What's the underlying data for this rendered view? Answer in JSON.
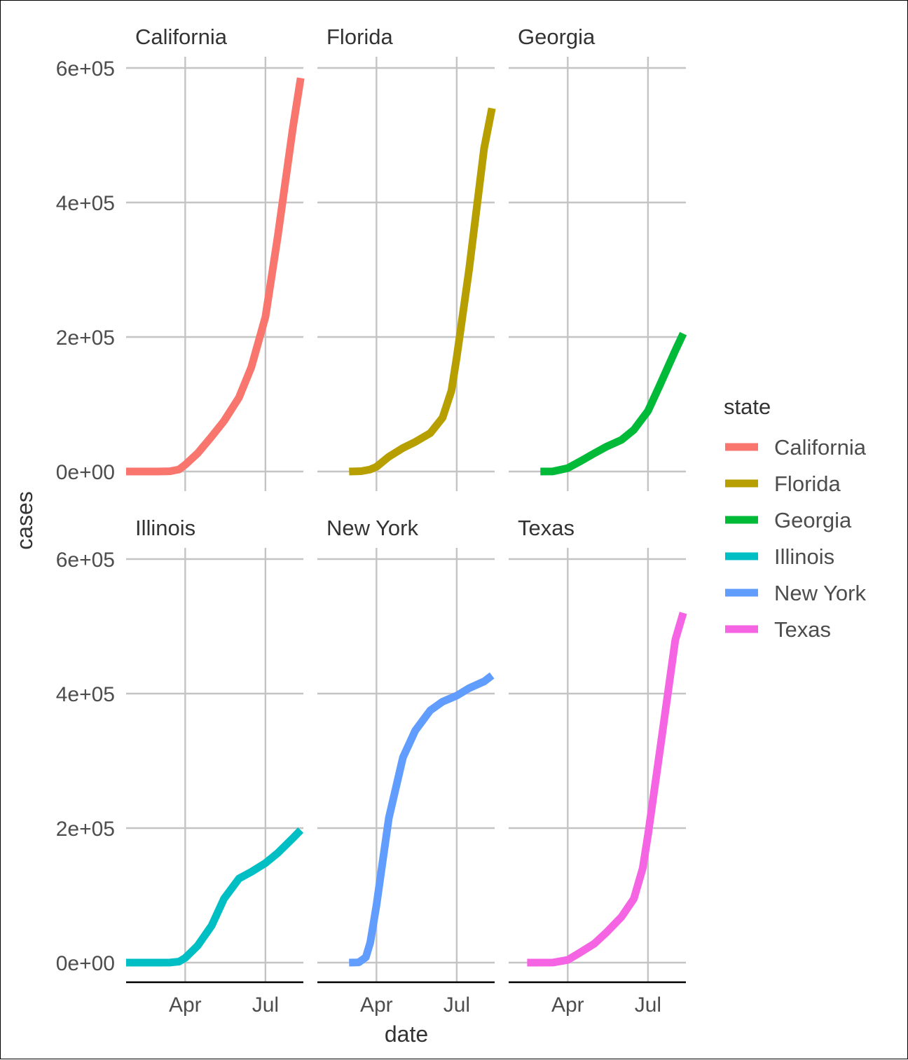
{
  "chart_data": {
    "type": "line",
    "facet_by": "state",
    "xlabel": "date",
    "ylabel": "cases",
    "x_range": [
      "2020-01-25",
      "2020-08-13"
    ],
    "x_ticks": [
      {
        "date": "2020-04-01",
        "label": "Apr"
      },
      {
        "date": "2020-07-01",
        "label": "Jul"
      }
    ],
    "ylim": [
      -30000,
      600000
    ],
    "y_ticks": [
      {
        "value": 0,
        "label": "0e+00"
      },
      {
        "value": 200000,
        "label": "2e+05"
      },
      {
        "value": 400000,
        "label": "4e+05"
      },
      {
        "value": 600000,
        "label": "6e+05"
      }
    ],
    "grid": true,
    "legend": {
      "title": "state",
      "position": "right"
    },
    "series": [
      {
        "name": "California",
        "color": "#F8766D",
        "points": [
          [
            "2020-01-25",
            0
          ],
          [
            "2020-03-01",
            50
          ],
          [
            "2020-03-15",
            400
          ],
          [
            "2020-03-25",
            3000
          ],
          [
            "2020-04-01",
            10000
          ],
          [
            "2020-04-15",
            27000
          ],
          [
            "2020-05-01",
            52000
          ],
          [
            "2020-05-15",
            75000
          ],
          [
            "2020-06-01",
            110000
          ],
          [
            "2020-06-15",
            155000
          ],
          [
            "2020-07-01",
            230000
          ],
          [
            "2020-07-15",
            350000
          ],
          [
            "2020-08-01",
            510000
          ],
          [
            "2020-08-10",
            585000
          ]
        ]
      },
      {
        "name": "Florida",
        "color": "#B79F00",
        "points": [
          [
            "2020-03-01",
            0
          ],
          [
            "2020-03-15",
            500
          ],
          [
            "2020-03-25",
            3000
          ],
          [
            "2020-04-01",
            7000
          ],
          [
            "2020-04-15",
            22000
          ],
          [
            "2020-05-01",
            35000
          ],
          [
            "2020-05-15",
            44000
          ],
          [
            "2020-06-01",
            57000
          ],
          [
            "2020-06-15",
            80000
          ],
          [
            "2020-06-25",
            120000
          ],
          [
            "2020-07-01",
            170000
          ],
          [
            "2020-07-15",
            300000
          ],
          [
            "2020-08-01",
            480000
          ],
          [
            "2020-08-10",
            540000
          ]
        ]
      },
      {
        "name": "Georgia",
        "color": "#00BA38",
        "points": [
          [
            "2020-03-01",
            0
          ],
          [
            "2020-03-15",
            100
          ],
          [
            "2020-04-01",
            5000
          ],
          [
            "2020-04-15",
            15000
          ],
          [
            "2020-05-01",
            27000
          ],
          [
            "2020-05-15",
            37000
          ],
          [
            "2020-06-01",
            47000
          ],
          [
            "2020-06-15",
            62000
          ],
          [
            "2020-07-01",
            90000
          ],
          [
            "2020-07-15",
            130000
          ],
          [
            "2020-08-01",
            180000
          ],
          [
            "2020-08-10",
            205000
          ]
        ]
      },
      {
        "name": "Illinois",
        "color": "#00BFC4",
        "points": [
          [
            "2020-01-25",
            0
          ],
          [
            "2020-03-01",
            10
          ],
          [
            "2020-03-15",
            100
          ],
          [
            "2020-03-25",
            1500
          ],
          [
            "2020-04-01",
            7000
          ],
          [
            "2020-04-15",
            25000
          ],
          [
            "2020-05-01",
            55000
          ],
          [
            "2020-05-15",
            95000
          ],
          [
            "2020-06-01",
            125000
          ],
          [
            "2020-06-15",
            135000
          ],
          [
            "2020-07-01",
            148000
          ],
          [
            "2020-07-15",
            163000
          ],
          [
            "2020-08-01",
            185000
          ],
          [
            "2020-08-10",
            197000
          ]
        ]
      },
      {
        "name": "New York",
        "color": "#619CFF",
        "points": [
          [
            "2020-03-01",
            0
          ],
          [
            "2020-03-12",
            400
          ],
          [
            "2020-03-20",
            8000
          ],
          [
            "2020-03-25",
            30000
          ],
          [
            "2020-04-01",
            85000
          ],
          [
            "2020-04-08",
            150000
          ],
          [
            "2020-04-15",
            215000
          ],
          [
            "2020-05-01",
            305000
          ],
          [
            "2020-05-15",
            345000
          ],
          [
            "2020-06-01",
            375000
          ],
          [
            "2020-06-15",
            388000
          ],
          [
            "2020-07-01",
            397000
          ],
          [
            "2020-07-15",
            408000
          ],
          [
            "2020-08-01",
            418000
          ],
          [
            "2020-08-10",
            427000
          ]
        ]
      },
      {
        "name": "Texas",
        "color": "#F564E3",
        "points": [
          [
            "2020-02-15",
            0
          ],
          [
            "2020-03-15",
            100
          ],
          [
            "2020-04-01",
            4000
          ],
          [
            "2020-04-15",
            15000
          ],
          [
            "2020-05-01",
            28000
          ],
          [
            "2020-05-15",
            45000
          ],
          [
            "2020-06-01",
            68000
          ],
          [
            "2020-06-15",
            95000
          ],
          [
            "2020-06-25",
            140000
          ],
          [
            "2020-07-01",
            190000
          ],
          [
            "2020-07-15",
            320000
          ],
          [
            "2020-08-01",
            480000
          ],
          [
            "2020-08-10",
            520000
          ]
        ]
      }
    ]
  }
}
